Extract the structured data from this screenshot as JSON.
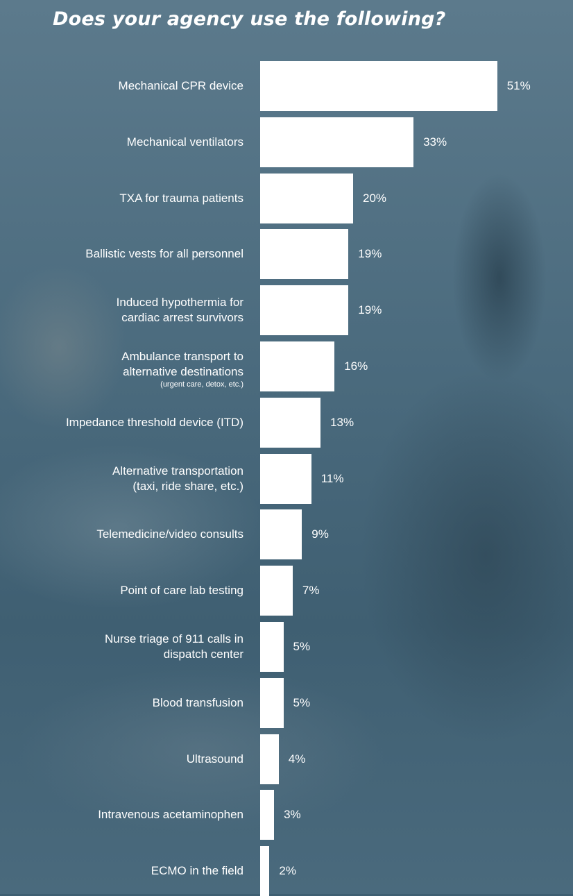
{
  "chart_data": {
    "type": "bar",
    "orientation": "horizontal",
    "title": "Does your agency use the following?",
    "categories": [
      {
        "lines": [
          "Mechanical CPR device"
        ]
      },
      {
        "lines": [
          "Mechanical ventilators"
        ]
      },
      {
        "lines": [
          "TXA for trauma patients"
        ]
      },
      {
        "lines": [
          "Ballistic vests for all personnel"
        ]
      },
      {
        "lines": [
          "Induced hypothermia for",
          "cardiac arrest survivors"
        ]
      },
      {
        "lines": [
          "Ambulance transport to",
          "alternative destinations"
        ],
        "note": "(urgent care, detox, etc.)"
      },
      {
        "lines": [
          "Impedance threshold device (ITD)"
        ]
      },
      {
        "lines": [
          "Alternative transportation",
          "(taxi, ride share, etc.)"
        ]
      },
      {
        "lines": [
          "Telemedicine/video consults"
        ]
      },
      {
        "lines": [
          "Point of care lab testing"
        ]
      },
      {
        "lines": [
          "Nurse triage of 911 calls in",
          "dispatch center"
        ]
      },
      {
        "lines": [
          "Blood transfusion"
        ]
      },
      {
        "lines": [
          "Ultrasound"
        ]
      },
      {
        "lines": [
          "Intravenous acetaminophen"
        ]
      },
      {
        "lines": [
          "ECMO in the field"
        ]
      }
    ],
    "values": [
      51,
      33,
      20,
      19,
      19,
      16,
      13,
      11,
      9,
      7,
      5,
      5,
      4,
      3,
      2
    ],
    "value_labels": [
      "51%",
      "33%",
      "20%",
      "19%",
      "19%",
      "16%",
      "13%",
      "11%",
      "9%",
      "7%",
      "5%",
      "5%",
      "4%",
      "3%",
      "2%"
    ],
    "unit": "%",
    "grid": false,
    "legend": "none",
    "colors": {
      "bar": "#ffffff",
      "text": "#ffffff",
      "background": "#3f5f72"
    }
  }
}
